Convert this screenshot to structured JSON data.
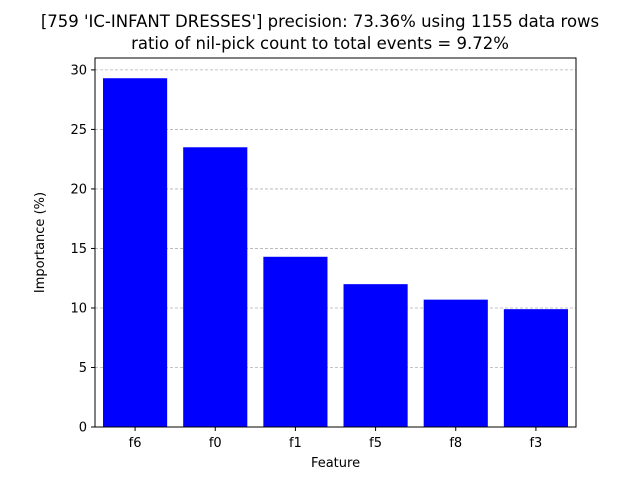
{
  "chart_data": {
    "type": "bar",
    "title": "[759 'IC-INFANT DRESSES'] precision: 73.36% using 1155 data rows",
    "subtitle": "ratio of nil-pick count to total events = 9.72%",
    "xlabel": "Feature",
    "ylabel": "Importance (%)",
    "categories": [
      "f6",
      "f0",
      "f1",
      "f5",
      "f8",
      "f3"
    ],
    "values": [
      29.3,
      23.5,
      14.3,
      12.0,
      10.7,
      9.9
    ],
    "ylim": [
      0,
      31
    ],
    "yticks": [
      0,
      5,
      10,
      15,
      20,
      25,
      30
    ],
    "bar_color": "#0000ff",
    "grid": "y-dashed"
  }
}
